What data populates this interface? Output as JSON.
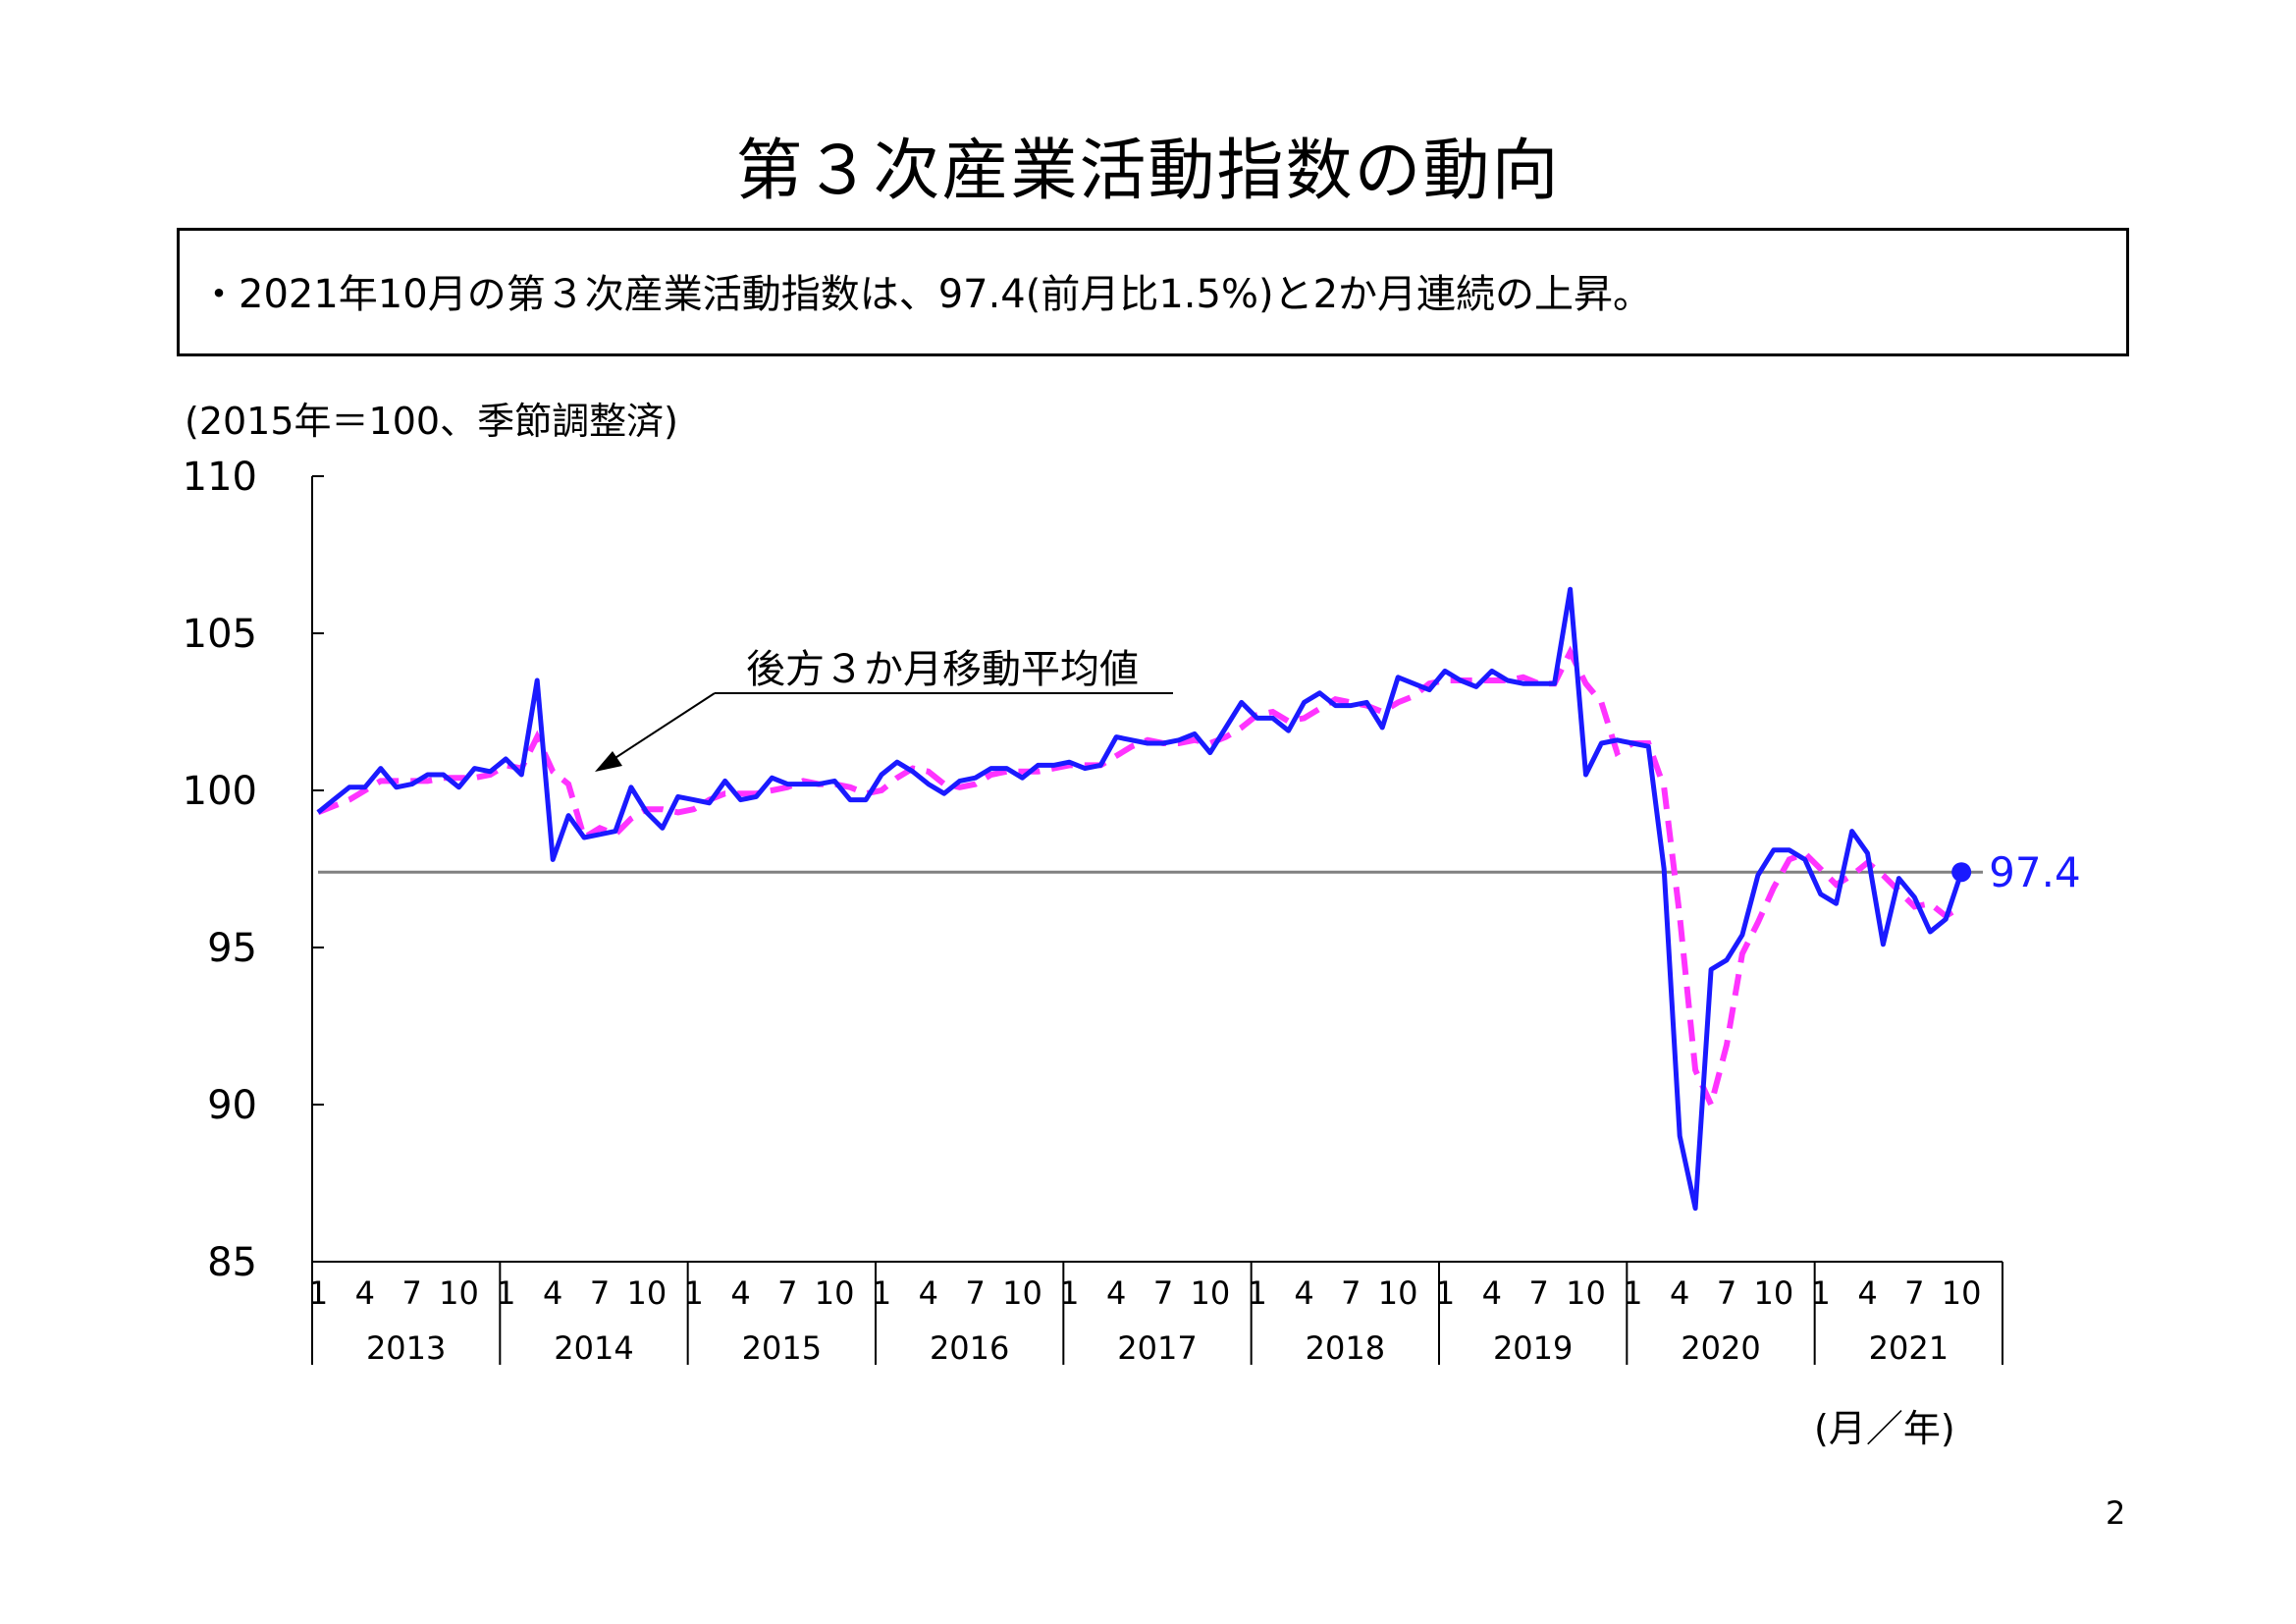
{
  "page": {
    "title": "第３次産業活動指数の動向",
    "summary": "・2021年10月の第３次産業活動指数は、97.4(前月比1.5%)と2か月連続の上昇。",
    "unit_note": "(2015年＝100、季節調整済)",
    "page_number": "2"
  },
  "chart_data": {
    "type": "line",
    "ylabel": "",
    "xlabel": "(月／年)",
    "ylim": [
      85,
      110
    ],
    "y_ticks": [
      "85",
      "90",
      "95",
      "100",
      "105",
      "110"
    ],
    "x_month_labels": [
      "1",
      "4",
      "7",
      "10"
    ],
    "years": [
      "2013",
      "2014",
      "2015",
      "2016",
      "2017",
      "2018",
      "2019",
      "2020",
      "2021"
    ],
    "annotation": "後方３か月移動平均値",
    "latest_value_label": "97.4",
    "reference_value": 97.4,
    "colors": {
      "index": "#1a1aff",
      "moving_average": "#ff33ff",
      "reference": "#808080",
      "axis": "#000000"
    },
    "series": [
      {
        "key": "index",
        "values": [
          99.3,
          99.7,
          100.1,
          100.1,
          100.7,
          100.1,
          100.2,
          100.5,
          100.5,
          100.1,
          100.7,
          100.6,
          101.0,
          100.5,
          103.5,
          97.8,
          99.2,
          98.5,
          98.6,
          98.7,
          100.1,
          99.3,
          98.8,
          99.8,
          99.7,
          99.6,
          100.3,
          99.7,
          99.8,
          100.4,
          100.2,
          100.2,
          100.2,
          100.3,
          99.7,
          99.7,
          100.5,
          100.9,
          100.6,
          100.2,
          99.9,
          100.3,
          100.4,
          100.7,
          100.7,
          100.4,
          100.8,
          100.8,
          100.9,
          100.7,
          100.8,
          101.7,
          101.6,
          101.5,
          101.5,
          101.6,
          101.8,
          101.2,
          102.0,
          102.8,
          102.3,
          102.3,
          101.9,
          102.8,
          103.1,
          102.7,
          102.7,
          102.8,
          102.0,
          103.6,
          103.4,
          103.2,
          103.8,
          103.5,
          103.3,
          103.8,
          103.5,
          103.4,
          103.4,
          103.4,
          106.4,
          100.5,
          101.5,
          101.6,
          101.5,
          101.4,
          97.5,
          89.0,
          86.7,
          94.3,
          94.6,
          95.4,
          97.3,
          98.1,
          98.1,
          97.8,
          96.7,
          96.4,
          98.7,
          98.0,
          95.1,
          97.2,
          96.6,
          95.5,
          95.9,
          97.4
        ]
      },
      {
        "key": "moving_average",
        "values": [
          99.3,
          99.5,
          99.7,
          100.0,
          100.3,
          100.3,
          100.3,
          100.3,
          100.4,
          100.4,
          100.4,
          100.5,
          100.8,
          100.7,
          101.7,
          100.6,
          100.2,
          98.5,
          98.8,
          98.6,
          99.1,
          99.4,
          99.4,
          99.3,
          99.4,
          99.7,
          99.9,
          99.9,
          99.9,
          100.0,
          100.1,
          100.3,
          100.2,
          100.2,
          100.1,
          99.9,
          100.0,
          100.4,
          100.7,
          100.6,
          100.2,
          100.1,
          100.2,
          100.5,
          100.6,
          100.6,
          100.6,
          100.7,
          100.8,
          100.8,
          100.8,
          101.1,
          101.4,
          101.6,
          101.5,
          101.5,
          101.6,
          101.5,
          101.7,
          102.0,
          102.4,
          102.5,
          102.2,
          102.3,
          102.6,
          102.9,
          102.8,
          102.7,
          102.5,
          102.8,
          103.0,
          103.4,
          103.5,
          103.5,
          103.5,
          103.5,
          103.5,
          103.6,
          103.4,
          103.4,
          104.4,
          103.4,
          102.8,
          101.2,
          101.5,
          101.5,
          100.1,
          96.0,
          91.1,
          90.0,
          91.9,
          94.8,
          95.8,
          96.9,
          97.8,
          98.0,
          97.5,
          97.0,
          97.3,
          97.7,
          97.3,
          96.8,
          96.3,
          96.4,
          96.0,
          96.3
        ]
      }
    ]
  }
}
